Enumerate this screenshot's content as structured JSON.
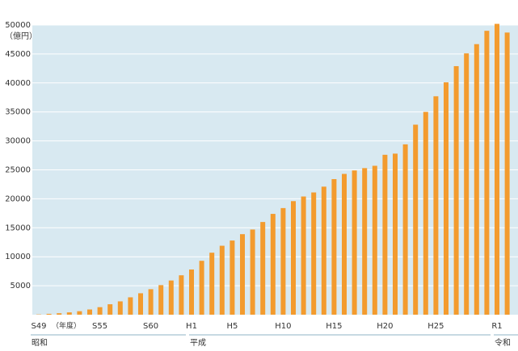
{
  "chart_data": {
    "type": "bar",
    "y_unit_label": "（億円）",
    "x_unit_label": "（年度）",
    "eras": [
      "昭和",
      "平成",
      "令和"
    ],
    "categories": [
      "S49",
      null,
      null,
      null,
      null,
      null,
      "S55",
      null,
      null,
      null,
      null,
      "S60",
      null,
      null,
      null,
      "H1",
      null,
      null,
      null,
      "H5",
      null,
      null,
      null,
      null,
      "H10",
      null,
      null,
      null,
      null,
      "H15",
      null,
      null,
      null,
      null,
      "H20",
      null,
      null,
      null,
      null,
      "H25",
      null,
      null,
      null,
      null,
      null,
      "R1",
      null
    ],
    "values": [
      50,
      150,
      250,
      400,
      600,
      900,
      1300,
      1800,
      2300,
      3000,
      3700,
      4400,
      5100,
      5900,
      6800,
      7800,
      9300,
      10700,
      11900,
      12800,
      13900,
      14700,
      16000,
      17400,
      18400,
      19600,
      20400,
      21100,
      22100,
      23400,
      24300,
      24900,
      25300,
      25700,
      27600,
      27800,
      29400,
      32800,
      35000,
      37700,
      40100,
      42900,
      45100,
      46700,
      49000,
      50200,
      48700
    ],
    "color": "#f39b2e",
    "ylim": [
      0,
      50000
    ],
    "yticks": [
      5000,
      10000,
      15000,
      20000,
      25000,
      30000,
      35000,
      40000,
      45000,
      50000
    ],
    "grid": true
  }
}
